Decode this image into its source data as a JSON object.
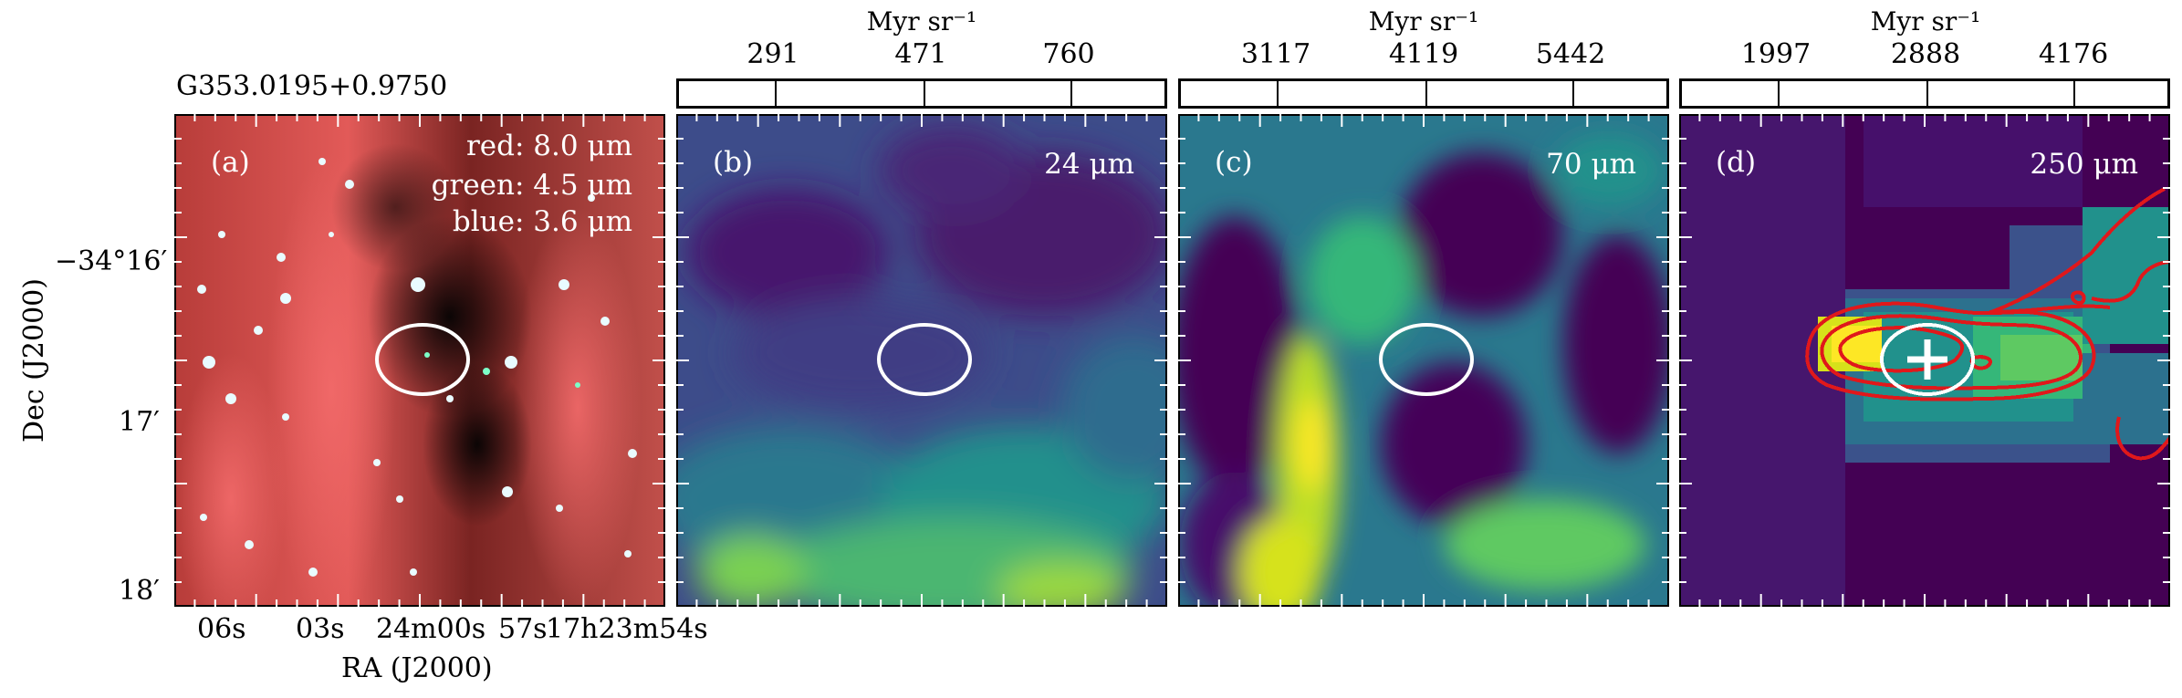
{
  "figure": {
    "source_name": "G353.0195+0.9750",
    "xlabel": "RA (J2000)",
    "ylabel": "Dec (J2000)",
    "ra_ticks": [
      "06s",
      "03s",
      "24m00s",
      "57s",
      "17h23m54s"
    ],
    "dec_ticks": [
      "−34°16′",
      "17′",
      "18′"
    ]
  },
  "panels": [
    {
      "label": "(a)",
      "legend": [
        "red: 8.0 μm",
        "green: 4.5 μm",
        "blue: 3.6 μm"
      ]
    },
    {
      "label": "(b)",
      "wavelength": "24 μm"
    },
    {
      "label": "(c)",
      "wavelength": "70 μm"
    },
    {
      "label": "(d)",
      "wavelength": "250 μm"
    }
  ],
  "colorbars": [
    {
      "unit": "Myr sr⁻¹",
      "ticks": [
        "291",
        "471",
        "760"
      ]
    },
    {
      "unit": "Myr sr⁻¹",
      "ticks": [
        "3117",
        "4119",
        "5442"
      ]
    },
    {
      "unit": "Myr sr⁻¹",
      "ticks": [
        "1997",
        "2888",
        "4176"
      ]
    }
  ],
  "colors": {
    "viridis": [
      "#440154",
      "#3b528b",
      "#21918c",
      "#5ec962",
      "#fde725"
    ],
    "ellipse": "#ffffff",
    "contour": "#e0181b"
  }
}
